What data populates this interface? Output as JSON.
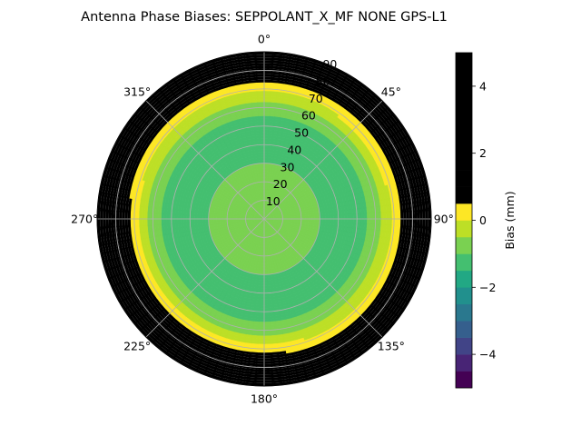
{
  "chart_data": {
    "type": "polar_contour",
    "title": "Antenna Phase Biases: SEPPOLANT_X_MF  NONE GPS-L1",
    "angular_axis": {
      "zero_location": "N",
      "direction": "clockwise",
      "tick_labels": [
        "0°",
        "45°",
        "90°",
        "135°",
        "180°",
        "225°",
        "270°",
        "315°"
      ],
      "tick_values": [
        0,
        45,
        90,
        135,
        180,
        225,
        270,
        315
      ]
    },
    "radial_axis": {
      "range": [
        0,
        90
      ],
      "tick_values": [
        10,
        20,
        30,
        40,
        50,
        60,
        70,
        80,
        90
      ],
      "tick_labels": [
        "10",
        "20",
        "30",
        "40",
        "50",
        "60",
        "70",
        "80",
        "90"
      ],
      "label_angle_deg": 22.5
    },
    "grid": true,
    "colorbar": {
      "label": "Bias (mm)",
      "range": [
        -5,
        5
      ],
      "tick_values": [
        -4,
        -2,
        0,
        2,
        4
      ],
      "tick_labels": [
        "−4",
        "−2",
        "0",
        "2",
        "4"
      ],
      "levels": [
        -5,
        -4.5,
        -4,
        -3.5,
        -3,
        -2.5,
        -2,
        -1.5,
        -1,
        -0.5,
        0,
        0.5,
        1,
        1.5,
        2,
        2.5,
        3,
        3.5,
        4,
        4.5,
        5
      ],
      "band_colors": [
        "#440154",
        "#482475",
        "#414487",
        "#355f8d",
        "#2a788e",
        "#21908d",
        "#22a884",
        "#44bf70",
        "#7ad151",
        "#bddf26",
        "#fde725"
      ]
    },
    "bias_vs_zenith_mm": {
      "zenith_deg": [
        0,
        10,
        20,
        30,
        40,
        50,
        60,
        70,
        80,
        90
      ],
      "mean_bias": [
        -0.8,
        -0.8,
        -0.9,
        -1.0,
        -1.2,
        -1.3,
        -0.8,
        0.2,
        1.4,
        2.6
      ]
    },
    "azimuthal_variation_at_horizon_mm": {
      "azimuth_deg": [
        0,
        45,
        90,
        135,
        180,
        225,
        270,
        315
      ],
      "bias": [
        1.8,
        2.4,
        2.2,
        1.8,
        2.6,
        2.8,
        2.6,
        1.8
      ]
    }
  }
}
